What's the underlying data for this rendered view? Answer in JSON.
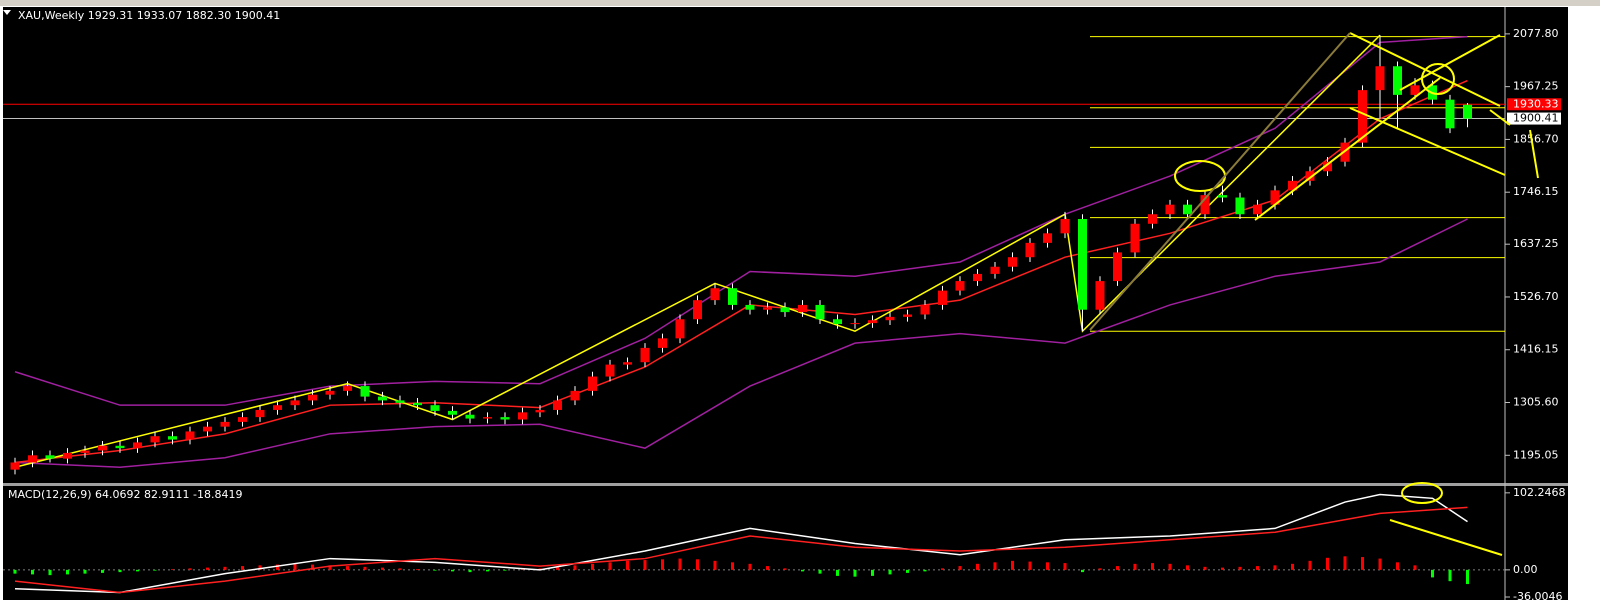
{
  "chart_data": [
    {
      "type": "candlestick",
      "header": "XAU,Weekly  1929.31 1933.07 1882.30 1900.41",
      "up_color": "#ff0000",
      "down_color": "#00ff00",
      "wick_color": "#ffffff",
      "open": [
        1165,
        1180,
        1195,
        1188,
        1200,
        1205,
        1215,
        1210,
        1222,
        1235,
        1228,
        1245,
        1255,
        1265,
        1275,
        1290,
        1300,
        1310,
        1322,
        1330,
        1340,
        1318,
        1310,
        1305,
        1300,
        1288,
        1280,
        1272,
        1275,
        1270,
        1285,
        1290,
        1310,
        1330,
        1360,
        1385,
        1390,
        1420,
        1440,
        1480,
        1520,
        1545,
        1510,
        1500,
        1505,
        1495,
        1510,
        1480,
        1470,
        1472,
        1478,
        1485,
        1490,
        1510,
        1540,
        1560,
        1575,
        1590,
        1610,
        1640,
        1660,
        1690,
        1500,
        1560,
        1620,
        1680,
        1700,
        1720,
        1700,
        1740,
        1735,
        1700,
        1720,
        1750,
        1770,
        1790,
        1810,
        1850,
        1960,
        2010,
        1950,
        1970,
        1940,
        1929.31
      ],
      "high": [
        1190,
        1205,
        1205,
        1210,
        1215,
        1225,
        1225,
        1232,
        1245,
        1245,
        1255,
        1265,
        1275,
        1285,
        1300,
        1310,
        1320,
        1332,
        1340,
        1350,
        1350,
        1328,
        1320,
        1315,
        1310,
        1298,
        1290,
        1285,
        1285,
        1295,
        1300,
        1320,
        1340,
        1370,
        1395,
        1400,
        1430,
        1450,
        1490,
        1530,
        1555,
        1555,
        1520,
        1515,
        1515,
        1520,
        1520,
        1490,
        1482,
        1488,
        1495,
        1500,
        1520,
        1550,
        1570,
        1585,
        1600,
        1620,
        1650,
        1670,
        1705,
        1700,
        1570,
        1630,
        1690,
        1710,
        1730,
        1730,
        1750,
        1760,
        1745,
        1730,
        1760,
        1780,
        1800,
        1820,
        1860,
        1970,
        2075,
        2020,
        1985,
        1980,
        1950,
        1933.07
      ],
      "low": [
        1155,
        1170,
        1180,
        1178,
        1190,
        1195,
        1200,
        1200,
        1212,
        1218,
        1218,
        1235,
        1245,
        1255,
        1265,
        1280,
        1290,
        1300,
        1312,
        1320,
        1308,
        1300,
        1295,
        1290,
        1278,
        1270,
        1262,
        1262,
        1260,
        1260,
        1275,
        1280,
        1300,
        1320,
        1350,
        1375,
        1380,
        1410,
        1430,
        1470,
        1510,
        1500,
        1490,
        1490,
        1485,
        1485,
        1470,
        1460,
        1460,
        1462,
        1468,
        1475,
        1480,
        1500,
        1530,
        1550,
        1565,
        1580,
        1600,
        1630,
        1650,
        1455,
        1490,
        1550,
        1610,
        1670,
        1690,
        1690,
        1690,
        1725,
        1690,
        1690,
        1710,
        1740,
        1760,
        1780,
        1800,
        1840,
        1900,
        1880,
        1940,
        1930,
        1870,
        1882.3
      ],
      "close": [
        1180,
        1195,
        1188,
        1200,
        1205,
        1215,
        1210,
        1222,
        1235,
        1228,
        1245,
        1255,
        1265,
        1275,
        1290,
        1300,
        1310,
        1322,
        1330,
        1340,
        1318,
        1310,
        1305,
        1300,
        1288,
        1280,
        1272,
        1275,
        1270,
        1285,
        1290,
        1310,
        1330,
        1360,
        1385,
        1390,
        1420,
        1440,
        1480,
        1520,
        1545,
        1510,
        1500,
        1505,
        1495,
        1510,
        1480,
        1470,
        1472,
        1478,
        1485,
        1490,
        1510,
        1540,
        1560,
        1575,
        1590,
        1610,
        1640,
        1660,
        1690,
        1500,
        1560,
        1620,
        1680,
        1700,
        1720,
        1700,
        1740,
        1735,
        1700,
        1720,
        1750,
        1770,
        1790,
        1810,
        1850,
        1960,
        2010,
        1950,
        1970,
        1940,
        1880,
        1900.41
      ],
      "overlays": [
        {
          "color": "#a020a0",
          "x": [
            0,
            6,
            12,
            18,
            24,
            30,
            36,
            42,
            48,
            54,
            60,
            66,
            72,
            78,
            83
          ],
          "values": [
            1370,
            1300,
            1300,
            1340,
            1350,
            1345,
            1440,
            1580,
            1570,
            1600,
            1700,
            1780,
            1880,
            2060,
            2072
          ]
        },
        {
          "color": "#a020a0",
          "x": [
            0,
            6,
            12,
            18,
            24,
            30,
            36,
            42,
            48,
            54,
            60,
            66,
            72,
            78,
            83
          ],
          "values": [
            1180,
            1170,
            1190,
            1240,
            1255,
            1260,
            1210,
            1340,
            1430,
            1450,
            1430,
            1510,
            1570,
            1600,
            1690
          ]
        },
        {
          "color": "#ff2020",
          "x": [
            0,
            6,
            12,
            18,
            24,
            30,
            36,
            42,
            48,
            54,
            60,
            66,
            72,
            78,
            83
          ],
          "values": [
            1180,
            1205,
            1240,
            1300,
            1305,
            1295,
            1380,
            1510,
            1490,
            1520,
            1610,
            1660,
            1730,
            1900,
            1980
          ]
        },
        {
          "color": "#ffff00",
          "x": [
            0,
            19,
            25,
            40,
            48,
            60,
            61,
            78
          ],
          "values": [
            1170,
            1345,
            1270,
            1555,
            1455,
            1700,
            1455,
            2075
          ]
        }
      ],
      "levels": {
        "color": "#ffff00",
        "values": [
          2072,
          1923,
          1840,
          1693,
          1609,
          1455
        ]
      },
      "price_lines": [
        {
          "value": 1930.33,
          "color": "#ff0000"
        },
        {
          "value": 1900.41,
          "color": "#c0c0c0"
        }
      ],
      "ylim": [
        1137,
        2132
      ],
      "yticks": [
        {
          "value": 2077.8,
          "label": "2077.80"
        },
        1967.25,
        {
          "value": 1856.7,
          "label": "1856.70"
        },
        1746.15,
        1637.25,
        {
          "value": 1526.7,
          "label": "1526.70"
        },
        1416.15,
        {
          "value": 1305.6,
          "label": "1305.60"
        },
        1195.05
      ]
    },
    {
      "type": "macd",
      "header": "MACD(12,26,9) 64.0692 82.9111 -18.8419",
      "up_color": "#ff0000",
      "down_color": "#00ff00",
      "histogram": [
        -5,
        -6,
        -7,
        -6,
        -5,
        -4,
        -3,
        -2,
        -1,
        1,
        2,
        3,
        4,
        5,
        6,
        7,
        8,
        7,
        6,
        5,
        4,
        3,
        2,
        1,
        -1,
        -2,
        -3,
        -2,
        -1,
        1,
        2,
        4,
        6,
        8,
        10,
        12,
        13,
        14,
        15,
        14,
        12,
        10,
        8,
        5,
        2,
        -2,
        -5,
        -8,
        -9,
        -8,
        -6,
        -4,
        -2,
        2,
        5,
        8,
        10,
        12,
        11,
        10,
        9,
        -3,
        2,
        5,
        8,
        9,
        8,
        6,
        4,
        3,
        4,
        5,
        6,
        8,
        12,
        16,
        18,
        17,
        15,
        10,
        6,
        -10,
        -15,
        -18.8419
      ],
      "lines": [
        {
          "color": "#ffffff",
          "x": [
            0,
            6,
            12,
            18,
            24,
            30,
            36,
            42,
            48,
            54,
            60,
            66,
            72,
            76,
            78,
            81,
            83
          ],
          "values": [
            -25,
            -30,
            -5,
            15,
            10,
            0,
            25,
            55,
            35,
            20,
            40,
            45,
            55,
            90,
            100,
            95,
            64.0692
          ]
        },
        {
          "color": "#ff2020",
          "x": [
            0,
            6,
            12,
            18,
            24,
            30,
            36,
            42,
            48,
            54,
            60,
            66,
            72,
            78,
            83
          ],
          "values": [
            -15,
            -30,
            -15,
            5,
            15,
            5,
            15,
            45,
            30,
            25,
            30,
            40,
            50,
            75,
            82.9111
          ]
        }
      ],
      "ylim": [
        -40,
        110
      ],
      "yticks": [
        102.2468,
        {
          "value": 0,
          "label": "0.00"
        },
        -36.0046
      ]
    }
  ]
}
